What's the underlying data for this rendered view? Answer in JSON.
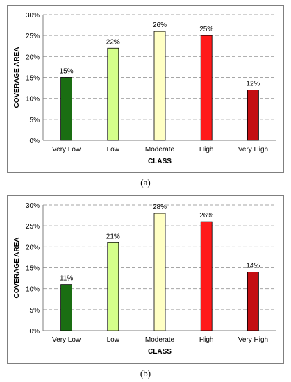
{
  "chart_data": [
    {
      "type": "bar",
      "categories": [
        "Very Low",
        "Low",
        "Moderate",
        "High",
        "Very High"
      ],
      "values": [
        15,
        22,
        26,
        25,
        12
      ],
      "data_labels": [
        "15%",
        "22%",
        "26%",
        "25%",
        "12%"
      ],
      "colors": [
        "#1a6e12",
        "#d4ff8a",
        "#ffffc4",
        "#ff1a1a",
        "#c40e12"
      ],
      "title": "",
      "xlabel": "CLASS",
      "ylabel": "COVERAGE AREA",
      "ylim": [
        0,
        30
      ],
      "yticks": [
        "0%",
        "5%",
        "10%",
        "15%",
        "20%",
        "25%",
        "30%"
      ],
      "grid": "dashed horizontal",
      "caption": "(a)"
    },
    {
      "type": "bar",
      "categories": [
        "Very Low",
        "Low",
        "Moderate",
        "High",
        "Very High"
      ],
      "values": [
        11,
        21,
        28,
        26,
        14
      ],
      "data_labels": [
        "11%",
        "21%",
        "28%",
        "26%",
        "14%"
      ],
      "colors": [
        "#1a6e12",
        "#d4ff8a",
        "#ffffc4",
        "#ff1a1a",
        "#c40e12"
      ],
      "title": "",
      "xlabel": "CLASS",
      "ylabel": "COVERAGE AREA",
      "ylim": [
        0,
        30
      ],
      "yticks": [
        "0%",
        "5%",
        "10%",
        "15%",
        "20%",
        "25%",
        "30%"
      ],
      "grid": "dashed horizontal",
      "caption": "(b)"
    }
  ]
}
